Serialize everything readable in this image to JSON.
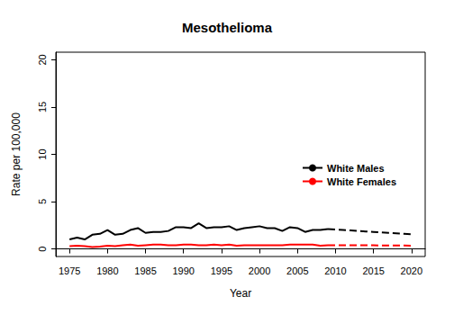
{
  "chart_data": {
    "type": "line",
    "title": "Mesothelioma",
    "x_label": "Year",
    "y_label": "Rate per 100,000",
    "x": [
      1975,
      1976,
      1977,
      1978,
      1979,
      1980,
      1981,
      1982,
      1983,
      1984,
      1985,
      1986,
      1987,
      1988,
      1989,
      1990,
      1991,
      1992,
      1993,
      1994,
      1995,
      1996,
      1997,
      1998,
      1999,
      2000,
      2001,
      2002,
      2003,
      2004,
      2005,
      2006,
      2007,
      2008,
      2009,
      2010,
      2011,
      2012,
      2013,
      2014,
      2015,
      2016,
      2017,
      2018,
      2019,
      2020
    ],
    "series": [
      {
        "name": "White Males",
        "color": "#000000",
        "line_style": "solid",
        "values": [
          1.0,
          1.2,
          1.0,
          1.5,
          1.6,
          2.0,
          1.5,
          1.6,
          2.0,
          2.2,
          1.7,
          1.8,
          1.8,
          1.9,
          2.3,
          2.3,
          2.2,
          2.7,
          2.2,
          2.3,
          2.3,
          2.4,
          2.0,
          2.2,
          2.3,
          2.4,
          2.2,
          2.2,
          1.9,
          2.3,
          2.2,
          1.8,
          2.0,
          2.0,
          2.1,
          null,
          null,
          null,
          null,
          null,
          null,
          null,
          null,
          null,
          null,
          null
        ]
      },
      {
        "name": "White Females",
        "color": "#ff0000",
        "line_style": "solid",
        "values": [
          0.3,
          0.35,
          0.3,
          0.2,
          0.25,
          0.35,
          0.3,
          0.4,
          0.45,
          0.35,
          0.4,
          0.45,
          0.45,
          0.4,
          0.4,
          0.45,
          0.45,
          0.4,
          0.4,
          0.45,
          0.4,
          0.45,
          0.35,
          0.4,
          0.4,
          0.4,
          0.4,
          0.4,
          0.4,
          0.45,
          0.45,
          0.45,
          0.45,
          0.35,
          0.4,
          null,
          null,
          null,
          null,
          null,
          null,
          null,
          null,
          null,
          null,
          null
        ]
      },
      {
        "name": "White Males",
        "color": "#000000",
        "line_style": "dashed",
        "values": [
          null,
          null,
          null,
          null,
          null,
          null,
          null,
          null,
          null,
          null,
          null,
          null,
          null,
          null,
          null,
          null,
          null,
          null,
          null,
          null,
          null,
          null,
          null,
          null,
          null,
          null,
          null,
          null,
          null,
          null,
          null,
          null,
          null,
          null,
          2.1,
          2.05,
          2.0,
          1.95,
          1.9,
          1.85,
          1.8,
          1.75,
          1.7,
          1.65,
          1.6,
          1.55
        ]
      },
      {
        "name": "White Females",
        "color": "#ff0000",
        "line_style": "dashed",
        "values": [
          null,
          null,
          null,
          null,
          null,
          null,
          null,
          null,
          null,
          null,
          null,
          null,
          null,
          null,
          null,
          null,
          null,
          null,
          null,
          null,
          null,
          null,
          null,
          null,
          null,
          null,
          null,
          null,
          null,
          null,
          null,
          null,
          null,
          null,
          0.4,
          0.4,
          0.4,
          0.39,
          0.39,
          0.38,
          0.38,
          0.37,
          0.37,
          0.36,
          0.36,
          0.35
        ]
      }
    ],
    "xlim": [
      1973.2,
      2021.8
    ],
    "xticks": [
      1975,
      1980,
      1985,
      1990,
      1995,
      2000,
      2005,
      2010,
      2015,
      2020
    ],
    "ylim": [
      -0.8,
      20.8
    ],
    "yticks": [
      0,
      5,
      10,
      15,
      20
    ],
    "grid": false,
    "legend": "right"
  }
}
